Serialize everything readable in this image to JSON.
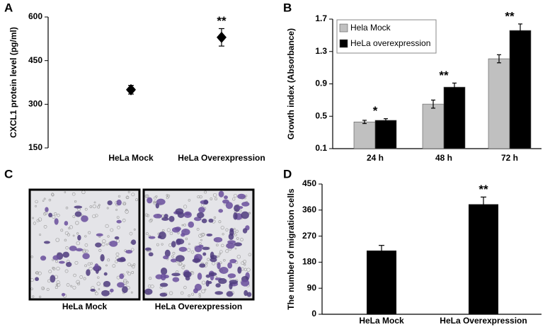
{
  "chart_data": [
    {
      "panel": "A",
      "type": "scatter",
      "ylabel": "CXCL1 protein level (pg/ml)",
      "categories": [
        "HeLa Mock",
        "HeLa Overexpression"
      ],
      "values": [
        350,
        530
      ],
      "errors": [
        15,
        30
      ],
      "annotations": [
        null,
        "**"
      ],
      "color": "#000000",
      "ylim": [
        150,
        600
      ],
      "yticks": [
        150,
        300,
        450,
        600
      ]
    },
    {
      "panel": "B",
      "type": "bar",
      "ylabel": "Growth index (Absorbance)",
      "categories": [
        "24 h",
        "48 h",
        "72 h"
      ],
      "series": [
        {
          "name": "Hela Mock",
          "color": "#c0c0c0",
          "values": [
            0.43,
            0.65,
            1.21
          ],
          "errors": [
            0.02,
            0.05,
            0.05
          ]
        },
        {
          "name": "HeLa overexpression",
          "color": "#000000",
          "values": [
            0.45,
            0.86,
            1.56
          ],
          "errors": [
            0.02,
            0.05,
            0.08
          ]
        }
      ],
      "annotations": [
        "*",
        "**",
        "**"
      ],
      "legend": "upper left",
      "ylim": [
        0.1,
        1.7
      ],
      "yticks": [
        0.1,
        0.5,
        0.9,
        1.3,
        1.7
      ]
    },
    {
      "panel": "C",
      "type": "image",
      "categories": [
        "HeLa Mock",
        "HeLa Overexpression"
      ]
    },
    {
      "panel": "D",
      "type": "bar",
      "ylabel": "The number of migration cells",
      "categories": [
        "HeLa Mock",
        "HeLa Overexpression"
      ],
      "values": [
        220,
        380
      ],
      "errors": [
        18,
        25
      ],
      "annotations": [
        null,
        "**"
      ],
      "color": "#000000",
      "ylim": [
        0,
        450
      ],
      "yticks": [
        0,
        90,
        180,
        270,
        360,
        450
      ]
    }
  ]
}
